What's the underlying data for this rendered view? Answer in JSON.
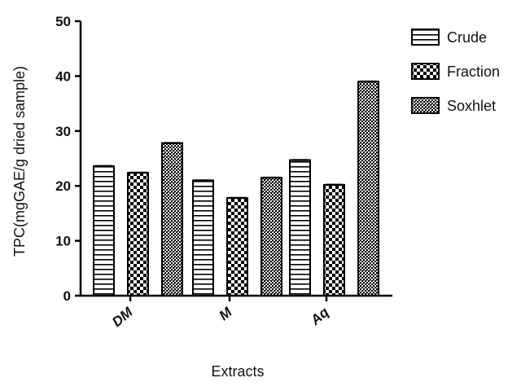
{
  "chart_data": {
    "type": "bar",
    "title": "",
    "xlabel": "Extracts",
    "ylabel": "TPC(mgGAE/g dried sample)",
    "categories": [
      "DM",
      "M",
      "Aq"
    ],
    "series": [
      {
        "name": "Crude",
        "values": [
          23.6,
          21.0,
          24.7
        ],
        "pattern": "horizontal-lines"
      },
      {
        "name": "Fraction",
        "values": [
          22.4,
          17.8,
          20.2
        ],
        "pattern": "checker"
      },
      {
        "name": "Soxhlet",
        "values": [
          27.8,
          21.5,
          39.0
        ],
        "pattern": "fine-crosshatch"
      }
    ],
    "ylim": [
      0,
      50
    ],
    "yticks": [
      0,
      10,
      20,
      30,
      40,
      50
    ],
    "grid": false,
    "legend_position": "top-right"
  }
}
